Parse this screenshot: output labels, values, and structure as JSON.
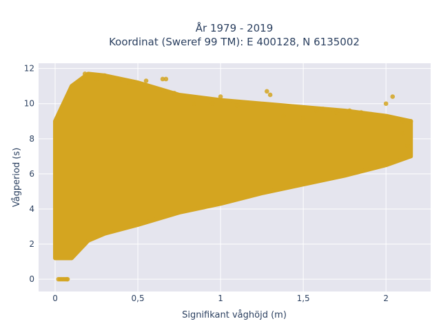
{
  "chart_data": {
    "type": "scatter",
    "title_lines": [
      "År 1979 - 2019",
      "Koordinat (Sweref 99 TM): E 400128, N 6135002"
    ],
    "xlabel": "Signifikant våghöjd (m)",
    "ylabel": "Vågperiod (s)",
    "xlim": [
      -0.1,
      2.27
    ],
    "ylim": [
      -0.7,
      12.3
    ],
    "xticks": [
      0,
      0.5,
      1,
      1.5,
      2
    ],
    "xtick_labels": [
      "0",
      "0,5",
      "1",
      "1,5",
      "2"
    ],
    "yticks": [
      0,
      2,
      4,
      6,
      8,
      10,
      12
    ],
    "ytick_labels": [
      "0",
      "2",
      "4",
      "6",
      "8",
      "10",
      "12"
    ],
    "grid": true,
    "legend": "none",
    "colors": {
      "marker": "#d4a520",
      "plot_bg": "#e5e5ee",
      "grid": "#ffffff",
      "text": "#2a3f5f"
    },
    "envelope": {
      "description_x": [
        0.0,
        0.1,
        0.2,
        0.3,
        0.5,
        0.75,
        1.0,
        1.25,
        1.5,
        1.75,
        2.0,
        2.15
      ],
      "lower_y": [
        1.2,
        1.2,
        2.2,
        2.6,
        3.1,
        3.8,
        4.3,
        4.9,
        5.4,
        5.9,
        6.5,
        7.0
      ],
      "upper_y": [
        9.0,
        11.0,
        11.7,
        11.6,
        11.2,
        10.5,
        10.2,
        10.0,
        9.8,
        9.6,
        9.3,
        9.0
      ]
    },
    "points": [
      {
        "x": 0.18,
        "y": 11.7
      },
      {
        "x": 0.2,
        "y": 11.5
      },
      {
        "x": 0.25,
        "y": 11.4
      },
      {
        "x": 0.3,
        "y": 11.6
      },
      {
        "x": 0.33,
        "y": 11.5
      },
      {
        "x": 0.38,
        "y": 11.3
      },
      {
        "x": 0.45,
        "y": 11.2
      },
      {
        "x": 0.55,
        "y": 11.3
      },
      {
        "x": 0.65,
        "y": 11.4
      },
      {
        "x": 0.67,
        "y": 11.4
      },
      {
        "x": 0.72,
        "y": 10.6
      },
      {
        "x": 0.84,
        "y": 10.0
      },
      {
        "x": 0.95,
        "y": 10.0
      },
      {
        "x": 1.0,
        "y": 10.4
      },
      {
        "x": 1.1,
        "y": 9.9
      },
      {
        "x": 1.2,
        "y": 10.0
      },
      {
        "x": 1.28,
        "y": 10.7
      },
      {
        "x": 1.3,
        "y": 10.5
      },
      {
        "x": 1.38,
        "y": 9.3
      },
      {
        "x": 1.5,
        "y": 9.2
      },
      {
        "x": 1.58,
        "y": 9.6
      },
      {
        "x": 1.62,
        "y": 9.7
      },
      {
        "x": 1.7,
        "y": 9.5
      },
      {
        "x": 1.78,
        "y": 9.6
      },
      {
        "x": 1.85,
        "y": 9.5
      },
      {
        "x": 1.91,
        "y": 9.4
      },
      {
        "x": 2.0,
        "y": 10.0
      },
      {
        "x": 2.04,
        "y": 10.4
      },
      {
        "x": 2.1,
        "y": 9.0
      },
      {
        "x": 2.15,
        "y": 9.0
      },
      {
        "x": 2.13,
        "y": 7.6
      },
      {
        "x": 2.1,
        "y": 8.3
      },
      {
        "x": 0.02,
        "y": 0.0
      },
      {
        "x": 0.03,
        "y": 0.0
      },
      {
        "x": 0.04,
        "y": 0.0
      },
      {
        "x": 0.05,
        "y": 0.0
      },
      {
        "x": 0.06,
        "y": 0.0
      },
      {
        "x": 0.07,
        "y": 0.0
      },
      {
        "x": 0.075,
        "y": 0.0
      }
    ]
  }
}
